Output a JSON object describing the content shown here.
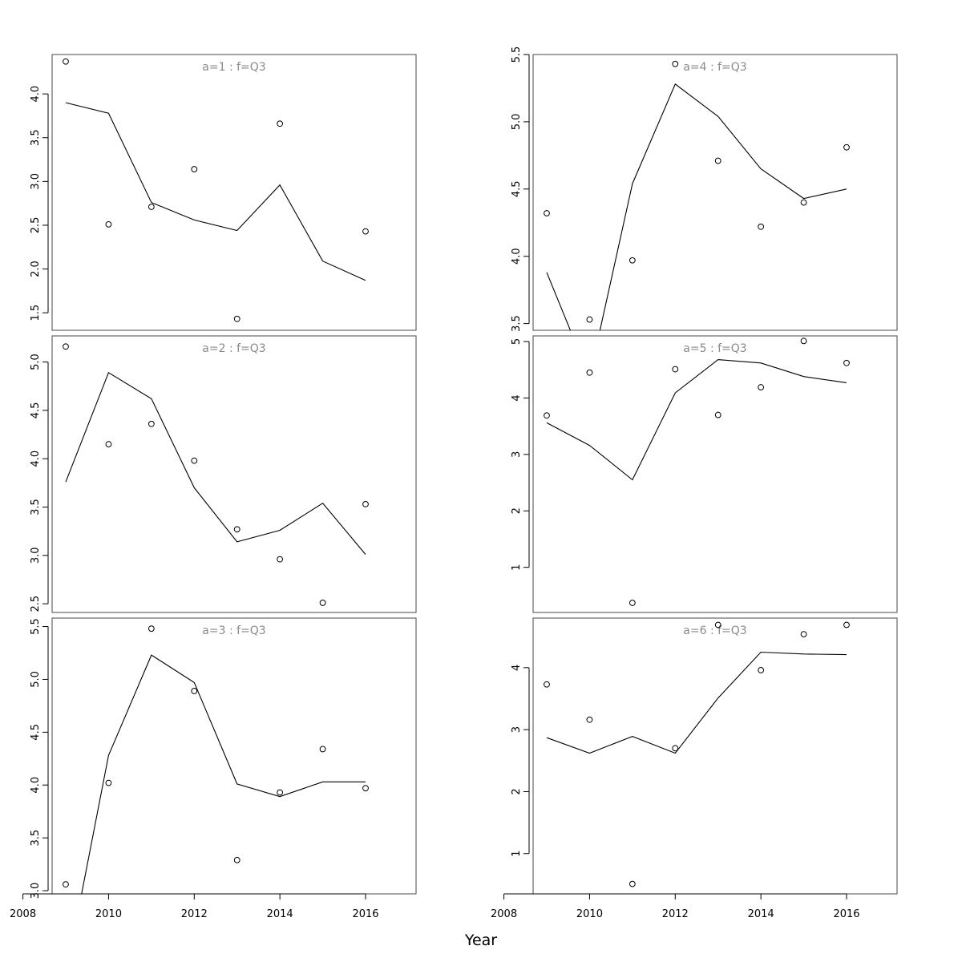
{
  "chart_data": {
    "type": "scatter",
    "xlabel": "Year",
    "xlim": [
      2008,
      2016
    ],
    "x_ticks": [
      2008,
      2010,
      2012,
      2014,
      2016
    ],
    "x_tick_labels": [
      "2008",
      "2010",
      "2012",
      "2014",
      "2016"
    ],
    "layout": "3 rows x 2 columns, shared x axis",
    "colors": {
      "title": "#8a8a8a",
      "points": "#000000",
      "line": "#000000",
      "frame": "#4a4a4a"
    },
    "panels": [
      {
        "title": "a=1 : f=Q3",
        "ylim": [
          1.3,
          4.45
        ],
        "y_ticks": [
          1.5,
          2.0,
          2.5,
          3.0,
          3.5,
          4.0
        ],
        "y_tick_labels": [
          "1.5",
          "2.0",
          "2.5",
          "3.0",
          "3.5",
          "4.0"
        ],
        "series": [
          {
            "kind": "points",
            "x": [
              2009,
              2010,
              2011,
              2012,
              2013,
              2014,
              2015,
              2016
            ],
            "y": [
              4.37,
              2.51,
              2.71,
              3.14,
              1.43,
              3.66,
              null,
              2.43
            ]
          },
          {
            "kind": "line",
            "x": [
              2009,
              2010,
              2011,
              2012,
              2013,
              2014,
              2015,
              2016
            ],
            "y": [
              3.9,
              3.78,
              2.76,
              2.56,
              2.44,
              2.96,
              2.09,
              1.87
            ]
          }
        ]
      },
      {
        "title": "a=2 : f=Q3",
        "ylim": [
          2.41,
          5.27
        ],
        "y_ticks": [
          2.5,
          3.0,
          3.5,
          4.0,
          4.5,
          5.0
        ],
        "y_tick_labels": [
          "2.5",
          "3.0",
          "3.5",
          "4.0",
          "4.5",
          "5.0"
        ],
        "series": [
          {
            "kind": "points",
            "x": [
              2009,
              2010,
              2011,
              2012,
              2013,
              2014,
              2015,
              2016
            ],
            "y": [
              5.16,
              4.15,
              4.36,
              3.98,
              3.27,
              2.96,
              2.51,
              3.53
            ]
          },
          {
            "kind": "line",
            "x": [
              2009,
              2010,
              2011,
              2012,
              2013,
              2014,
              2015,
              2016
            ],
            "y": [
              3.76,
              4.89,
              4.62,
              3.7,
              3.14,
              3.26,
              3.54,
              3.01
            ]
          }
        ]
      },
      {
        "title": "a=3 : f=Q3",
        "ylim": [
          2.97,
          5.58
        ],
        "y_ticks": [
          3.0,
          3.5,
          4.0,
          4.5,
          5.0,
          5.5
        ],
        "y_tick_labels": [
          "3.0",
          "3.5",
          "4.0",
          "4.5",
          "5.0",
          "5.5"
        ],
        "series": [
          {
            "kind": "points",
            "x": [
              2009,
              2010,
              2011,
              2012,
              2013,
              2014,
              2015,
              2016
            ],
            "y": [
              3.06,
              4.02,
              5.48,
              4.89,
              3.29,
              3.93,
              4.34,
              3.97
            ]
          },
          {
            "kind": "line",
            "x": [
              2009,
              2010,
              2011,
              2012,
              2013,
              2014,
              2015,
              2016
            ],
            "y": [
              2.2,
              4.28,
              5.23,
              4.97,
              4.01,
              3.89,
              4.03,
              4.03
            ]
          }
        ]
      },
      {
        "title": "a=4 : f=Q3",
        "ylim": [
          3.45,
          5.5
        ],
        "y_ticks": [
          3.5,
          4.0,
          4.5,
          5.0,
          5.5
        ],
        "y_tick_labels": [
          "3.5",
          "4.0",
          "4.5",
          "5.0",
          "5.5"
        ],
        "series": [
          {
            "kind": "points",
            "x": [
              2009,
              2010,
              2011,
              2012,
              2013,
              2014,
              2015,
              2016
            ],
            "y": [
              4.32,
              3.53,
              3.97,
              5.43,
              4.71,
              4.22,
              4.4,
              4.81
            ]
          },
          {
            "kind": "line",
            "x": [
              2009,
              2010,
              2011,
              2012,
              2013,
              2014,
              2015,
              2016
            ],
            "y": [
              3.88,
              3.1,
              4.54,
              5.28,
              5.04,
              4.65,
              4.43,
              4.5
            ]
          }
        ]
      },
      {
        "title": "a=5 : f=Q3",
        "ylim": [
          0.2,
          5.1
        ],
        "y_ticks": [
          1,
          2,
          3,
          4,
          5
        ],
        "y_tick_labels": [
          "1",
          "2",
          "3",
          "4",
          "5"
        ],
        "series": [
          {
            "kind": "points",
            "x": [
              2009,
              2010,
              2011,
              2012,
              2013,
              2014,
              2015,
              2016
            ],
            "y": [
              3.69,
              4.45,
              0.37,
              4.51,
              3.7,
              4.19,
              5.01,
              4.62
            ]
          },
          {
            "kind": "line",
            "x": [
              2009,
              2010,
              2011,
              2012,
              2013,
              2014,
              2015,
              2016
            ],
            "y": [
              3.56,
              3.16,
              2.55,
              4.09,
              4.68,
              4.62,
              4.38,
              4.27
            ]
          }
        ]
      },
      {
        "title": "a=6 : f=Q3",
        "ylim": [
          0.35,
          4.8
        ],
        "y_ticks": [
          1,
          2,
          3,
          4
        ],
        "y_tick_labels": [
          "1",
          "2",
          "3",
          "4"
        ],
        "series": [
          {
            "kind": "points",
            "x": [
              2009,
              2010,
              2011,
              2012,
              2013,
              2014,
              2015,
              2016
            ],
            "y": [
              3.73,
              3.16,
              0.51,
              2.7,
              4.69,
              3.96,
              4.54,
              4.69
            ]
          },
          {
            "kind": "line",
            "x": [
              2009,
              2010,
              2011,
              2012,
              2013,
              2014,
              2015,
              2016
            ],
            "y": [
              2.87,
              2.62,
              2.89,
              2.62,
              3.51,
              4.25,
              4.22,
              4.21
            ]
          }
        ]
      }
    ]
  }
}
